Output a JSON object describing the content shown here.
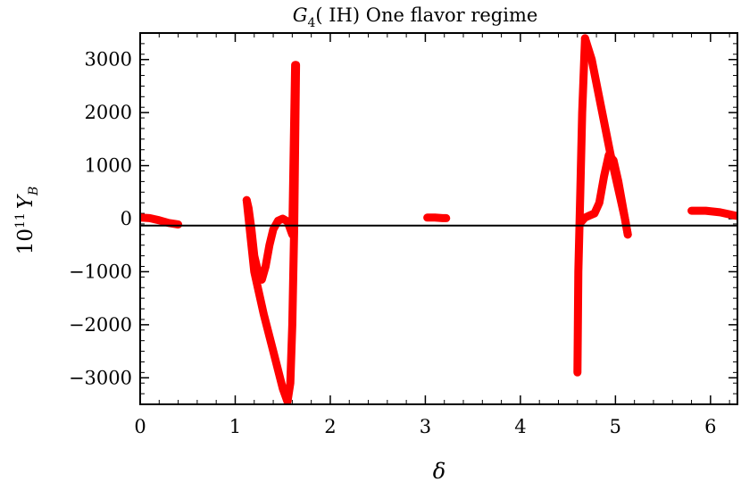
{
  "chart_data": {
    "type": "line",
    "title_parts": {
      "symbol": "G",
      "subscript": "4",
      "rest": "( IH)  One  flavor  regime"
    },
    "xlabel": "δ",
    "ylabel_parts": {
      "base": "10",
      "exp": "11",
      "var": "Y",
      "sub": "B"
    },
    "xlim": [
      0,
      6.2832
    ],
    "ylim": [
      -3500,
      3500
    ],
    "xticks": [
      0,
      1,
      2,
      3,
      4,
      5,
      6
    ],
    "yticks": [
      -3000,
      -2000,
      -1000,
      0,
      1000,
      2000,
      3000
    ],
    "ytick_labels": [
      "−3000",
      "−2000",
      "−1000",
      "0",
      "1000",
      "2000",
      "3000"
    ],
    "reference_line_y": -130,
    "grid": false,
    "series": [
      {
        "x": [
          0.0,
          0.1,
          0.2,
          0.3,
          0.4
        ],
        "y": [
          20,
          10,
          -30,
          -80,
          -110
        ]
      },
      {
        "x": [
          1.12,
          1.14,
          1.17,
          1.2,
          1.24,
          1.28,
          1.32,
          1.36,
          1.4,
          1.45,
          1.5,
          1.55,
          1.6,
          1.63
        ],
        "y": [
          350,
          200,
          -200,
          -700,
          -1000,
          -1150,
          -900,
          -500,
          -200,
          -40,
          0,
          -50,
          -300,
          2900
        ]
      },
      {
        "x": [
          1.12,
          1.2,
          1.3,
          1.4,
          1.5,
          1.55,
          1.58,
          1.6,
          1.62,
          1.64
        ],
        "y": [
          350,
          -1000,
          -1800,
          -2500,
          -3200,
          -3450,
          -3100,
          -2000,
          -200,
          2900
        ]
      },
      {
        "x": [
          3.02,
          3.1,
          3.18,
          3.22
        ],
        "y": [
          20,
          20,
          10,
          10
        ]
      },
      {
        "x": [
          4.6,
          4.61,
          4.63,
          4.65,
          4.68
        ],
        "y": [
          -2900,
          -1000,
          500,
          2000,
          3400
        ]
      },
      {
        "x": [
          4.63,
          4.68,
          4.73,
          4.78,
          4.83,
          4.88,
          4.93,
          4.98,
          5.03,
          5.08,
          5.13
        ],
        "y": [
          -80,
          20,
          60,
          100,
          300,
          800,
          1200,
          1100,
          700,
          200,
          -300
        ]
      },
      {
        "x": [
          4.68,
          4.75,
          4.85,
          4.95,
          5.05,
          5.1,
          5.13
        ],
        "y": [
          3400,
          3000,
          2100,
          1200,
          400,
          0,
          -300
        ]
      },
      {
        "x": [
          5.8,
          5.95,
          6.1,
          6.2,
          6.28
        ],
        "y": [
          150,
          150,
          120,
          80,
          50
        ]
      }
    ],
    "colors": {
      "series": "#ff0000",
      "axis": "#000000"
    }
  }
}
